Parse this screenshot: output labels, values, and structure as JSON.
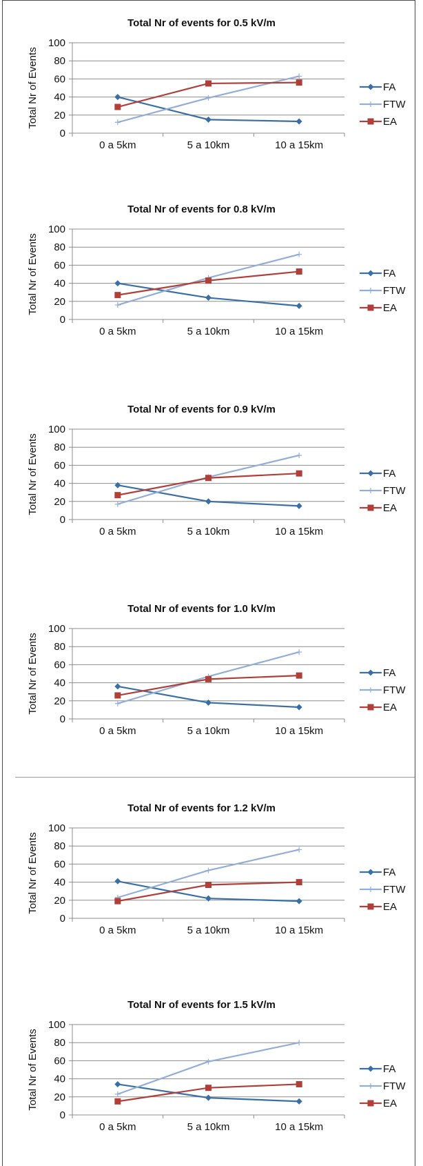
{
  "chart_data": [
    {
      "type": "line",
      "title": "Total Nr of events for 0.5 kV/m",
      "ylabel": "Total Nr of Events",
      "xlabel": "",
      "categories": [
        "0 a 5km",
        "5 a 10km",
        "10 a 15km"
      ],
      "ylim": [
        0,
        100
      ],
      "yticks": [
        0,
        20,
        40,
        60,
        80,
        100
      ],
      "grid": true,
      "legend": "right",
      "series": [
        {
          "name": "FA",
          "values": [
            40,
            15,
            13
          ],
          "color": "#3a6fa6",
          "marker": "diamond"
        },
        {
          "name": "FTW",
          "values": [
            12,
            39,
            63
          ],
          "color": "#93aed6",
          "marker": "plus"
        },
        {
          "name": "EA",
          "values": [
            29,
            55,
            56
          ],
          "color": "#b03f3a",
          "marker": "square"
        }
      ]
    },
    {
      "type": "line",
      "title": "Total Nr of events for 0.8 kV/m",
      "ylabel": "Total Nr of Events",
      "xlabel": "",
      "categories": [
        "0 a 5km",
        "5 a 10km",
        "10 a 15km"
      ],
      "ylim": [
        0,
        100
      ],
      "yticks": [
        0,
        20,
        40,
        60,
        80,
        100
      ],
      "grid": true,
      "legend": "right",
      "series": [
        {
          "name": "FA",
          "values": [
            40,
            24,
            15
          ],
          "color": "#3a6fa6",
          "marker": "diamond"
        },
        {
          "name": "FTW",
          "values": [
            16,
            46,
            72
          ],
          "color": "#93aed6",
          "marker": "plus"
        },
        {
          "name": "EA",
          "values": [
            27,
            43,
            53
          ],
          "color": "#b03f3a",
          "marker": "square"
        }
      ]
    },
    {
      "type": "line",
      "title": "Total Nr of events for 0.9 kV/m",
      "ylabel": "Total Nr of Events",
      "xlabel": "",
      "categories": [
        "0 a 5km",
        "5 a 10km",
        "10 a 15km"
      ],
      "ylim": [
        0,
        100
      ],
      "yticks": [
        0,
        20,
        40,
        60,
        80,
        100
      ],
      "grid": true,
      "legend": "right",
      "series": [
        {
          "name": "FA",
          "values": [
            38,
            20,
            15
          ],
          "color": "#3a6fa6",
          "marker": "diamond"
        },
        {
          "name": "FTW",
          "values": [
            17,
            47,
            71
          ],
          "color": "#93aed6",
          "marker": "plus"
        },
        {
          "name": "EA",
          "values": [
            27,
            46,
            51
          ],
          "color": "#b03f3a",
          "marker": "square"
        }
      ]
    },
    {
      "type": "line",
      "title": "Total Nr of events for 1.0 kV/m",
      "ylabel": "Total Nr of Events",
      "xlabel": "",
      "categories": [
        "0 a 5km",
        "5 a 10km",
        "10 a 15km"
      ],
      "ylim": [
        0,
        100
      ],
      "yticks": [
        0,
        20,
        40,
        60,
        80,
        100
      ],
      "grid": true,
      "legend": "right",
      "series": [
        {
          "name": "FA",
          "values": [
            36,
            18,
            13
          ],
          "color": "#3a6fa6",
          "marker": "diamond"
        },
        {
          "name": "FTW",
          "values": [
            17,
            47,
            74
          ],
          "color": "#93aed6",
          "marker": "plus"
        },
        {
          "name": "EA",
          "values": [
            26,
            44,
            48
          ],
          "color": "#b03f3a",
          "marker": "square"
        }
      ]
    },
    {
      "type": "line",
      "title": "Total Nr of events for 1.2 kV/m",
      "ylabel": "Total Nr of Events",
      "xlabel": "",
      "categories": [
        "0 a 5km",
        "5 a 10km",
        "10 a 15km"
      ],
      "ylim": [
        0,
        100
      ],
      "yticks": [
        0,
        20,
        40,
        60,
        80,
        100
      ],
      "grid": true,
      "legend": "right",
      "series": [
        {
          "name": "FA",
          "values": [
            41,
            22,
            19
          ],
          "color": "#3a6fa6",
          "marker": "diamond"
        },
        {
          "name": "FTW",
          "values": [
            23,
            53,
            76
          ],
          "color": "#93aed6",
          "marker": "plus"
        },
        {
          "name": "EA",
          "values": [
            19,
            37,
            40
          ],
          "color": "#b03f3a",
          "marker": "square"
        }
      ]
    },
    {
      "type": "line",
      "title": "Total Nr of events for 1.5 kV/m",
      "ylabel": "Total Nr of Events",
      "xlabel": "",
      "categories": [
        "0 a 5km",
        "5 a 10km",
        "10 a 15km"
      ],
      "ylim": [
        0,
        100
      ],
      "yticks": [
        0,
        20,
        40,
        60,
        80,
        100
      ],
      "grid": true,
      "legend": "right",
      "series": [
        {
          "name": "FA",
          "values": [
            34,
            19,
            15
          ],
          "color": "#3a6fa6",
          "marker": "diamond"
        },
        {
          "name": "FTW",
          "values": [
            23,
            59,
            80
          ],
          "color": "#93aed6",
          "marker": "plus"
        },
        {
          "name": "EA",
          "values": [
            15,
            30,
            34
          ],
          "color": "#b03f3a",
          "marker": "square"
        }
      ]
    }
  ]
}
